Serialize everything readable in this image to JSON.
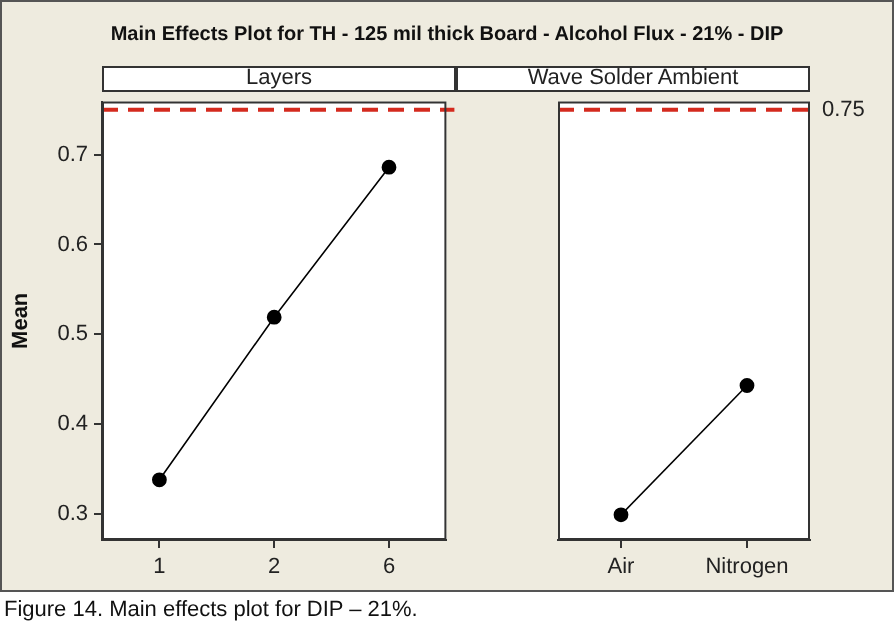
{
  "chart_data": [
    {
      "type": "line",
      "title": "Main Effects Plot for TH - 125 mil thick Board - Alcohol Flux - 21% - DIP",
      "subtitle": "Layers",
      "ylabel": "Mean",
      "categories": [
        "1",
        "2",
        "6"
      ],
      "values": [
        0.338,
        0.519,
        0.686
      ],
      "color": "#000000",
      "ylim": [
        0.271,
        0.759
      ],
      "yticks": [
        0.3,
        0.4,
        0.5,
        0.6,
        0.7
      ],
      "marker": "circle",
      "line_style": "solid",
      "grid": false,
      "ref_lines": [
        {
          "axis": "y",
          "value": 0.75,
          "color": "#d42a1e",
          "line_style": "dashed"
        }
      ]
    },
    {
      "type": "line",
      "subtitle": "Wave Solder Ambient",
      "categories": [
        "Air",
        "Nitrogen"
      ],
      "values": [
        0.299,
        0.443
      ],
      "color": "#000000",
      "ylim": [
        0.271,
        0.759
      ],
      "yticks": [
        0.3,
        0.4,
        0.5,
        0.6,
        0.7
      ],
      "tick_labels": "x",
      "marker": "circle",
      "line_style": "solid",
      "grid": false,
      "ref_lines": [
        {
          "axis": "y",
          "value": 0.75,
          "label": "0.75",
          "color": "#d42a1e",
          "line_style": "dashed"
        }
      ],
      "annotations": [
        "Figure 14. Main effects plot for DIP – 21%."
      ]
    }
  ]
}
